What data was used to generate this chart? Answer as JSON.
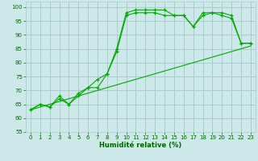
{
  "xlabel": "Humidité relative (%)",
  "background_color": "#cce8e8",
  "grid_color": "#aacccc",
  "line_color": "#00aa00",
  "xlim": [
    -0.5,
    23.5
  ],
  "ylim": [
    55,
    102
  ],
  "yticks": [
    55,
    60,
    65,
    70,
    75,
    80,
    85,
    90,
    95,
    100
  ],
  "xticks": [
    0,
    1,
    2,
    3,
    4,
    5,
    6,
    7,
    8,
    9,
    10,
    11,
    12,
    13,
    14,
    15,
    16,
    17,
    18,
    19,
    20,
    21,
    22,
    23
  ],
  "line1_x": [
    0,
    1,
    2,
    3,
    4,
    5,
    6,
    7,
    8,
    9,
    10,
    11,
    12,
    13,
    14,
    15,
    16,
    17,
    18,
    19,
    20,
    21,
    22,
    23
  ],
  "line1_y": [
    63,
    65,
    64,
    67,
    65,
    68,
    71,
    71,
    76,
    85,
    98,
    99,
    99,
    99,
    99,
    97,
    97,
    93,
    97,
    98,
    97,
    96,
    87,
    87
  ],
  "line2_x": [
    0,
    1,
    2,
    3,
    4,
    5,
    6,
    7,
    8,
    9,
    10,
    11,
    12,
    13,
    14,
    15,
    16,
    17,
    18,
    19,
    20,
    21,
    22,
    23
  ],
  "line2_y": [
    63,
    65,
    64,
    68,
    65,
    69,
    71,
    74,
    76,
    84,
    97,
    98,
    98,
    98,
    97,
    97,
    97,
    93,
    98,
    98,
    98,
    97,
    87,
    87
  ],
  "line3_x": [
    0,
    23
  ],
  "line3_y": [
    63,
    86
  ]
}
